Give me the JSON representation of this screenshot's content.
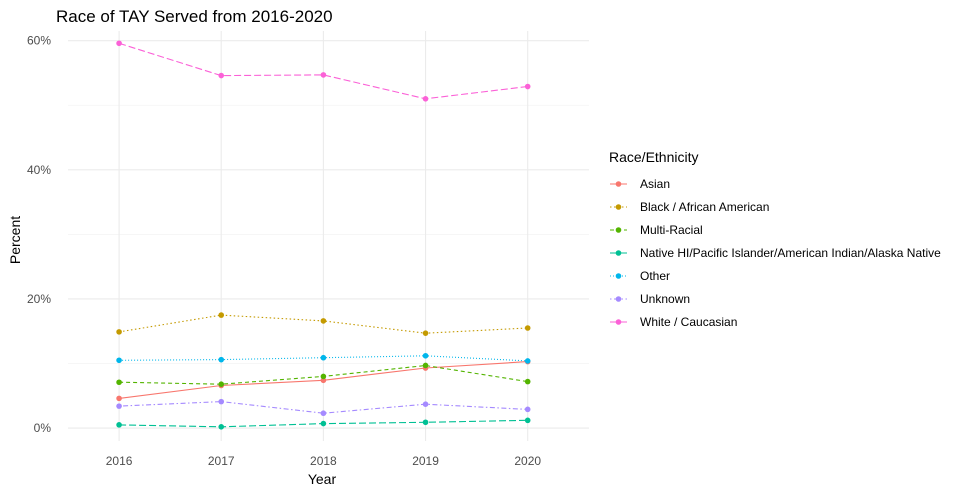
{
  "chart_data": {
    "type": "line",
    "title": "Race of TAY Served from 2016-2020",
    "xlabel": "Year",
    "ylabel": "Percent",
    "x": [
      2016,
      2017,
      2018,
      2019,
      2020
    ],
    "x_tick_labels": [
      "2016",
      "2017",
      "2018",
      "2019",
      "2020"
    ],
    "xlim": [
      2015.5,
      2020.6
    ],
    "ylim": [
      -0.02,
      0.615
    ],
    "y_ticks": [
      0,
      0.2,
      0.4,
      0.6
    ],
    "y_tick_labels": [
      "0%",
      "20%",
      "40%",
      "60%"
    ],
    "grid": true,
    "legend": {
      "title": "Race/Ethnicity",
      "placement": "right"
    },
    "series": [
      {
        "name": "Asian",
        "color": "#F8766D",
        "dash": "solid",
        "values": [
          0.046,
          0.066,
          0.074,
          0.093,
          0.103
        ]
      },
      {
        "name": "Black / African American",
        "color": "#C49A00",
        "dash": "dotted",
        "values": [
          0.149,
          0.175,
          0.166,
          0.147,
          0.155
        ]
      },
      {
        "name": "Multi-Racial",
        "color": "#53B400",
        "dash": "dashed",
        "values": [
          0.071,
          0.068,
          0.08,
          0.097,
          0.072
        ]
      },
      {
        "name": "Native HI/Pacific Islander/American Indian/Alaska Native",
        "color": "#00C094",
        "dash": "longdash",
        "values": [
          0.005,
          0.002,
          0.007,
          0.009,
          0.012
        ]
      },
      {
        "name": "Other",
        "color": "#00B6EB",
        "dash": "dotted-fine",
        "values": [
          0.105,
          0.106,
          0.109,
          0.112,
          0.104
        ]
      },
      {
        "name": "Unknown",
        "color": "#A58AFF",
        "dash": "dotdash",
        "values": [
          0.034,
          0.041,
          0.023,
          0.037,
          0.029
        ]
      },
      {
        "name": "White / Caucasian",
        "color": "#FB61D7",
        "dash": "longdash",
        "values": [
          0.596,
          0.546,
          0.547,
          0.51,
          0.529
        ]
      }
    ]
  }
}
